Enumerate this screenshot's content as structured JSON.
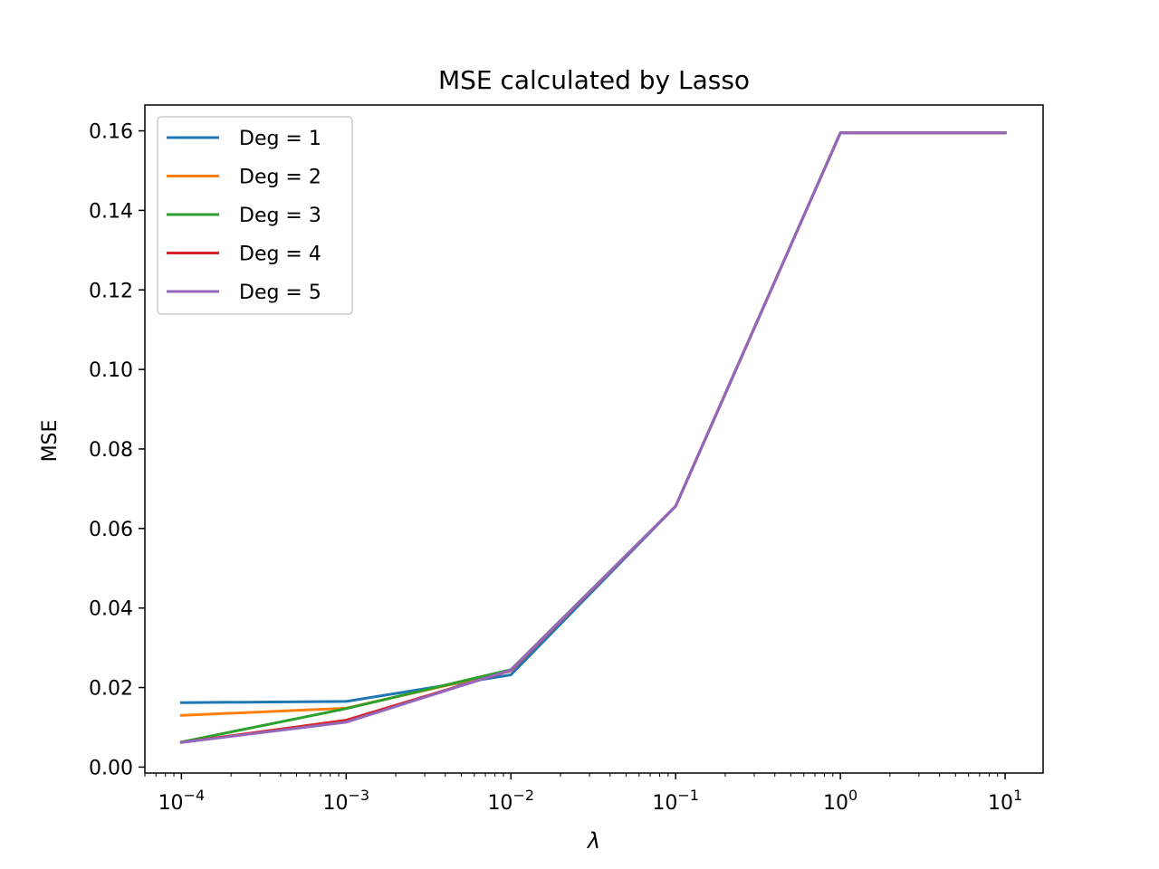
{
  "chart_data": {
    "type": "line",
    "title": "MSE calculated by Lasso",
    "xlabel": "λ",
    "ylabel": "MSE",
    "xscale": "log",
    "xlim": [
      6e-05,
      17
    ],
    "ylim": [
      -0.0015,
      0.1665
    ],
    "grid": false,
    "legend_position": "top-left",
    "x": [
      0.0001,
      0.001,
      0.01,
      0.1,
      1,
      10
    ],
    "x_ticks": [
      {
        "value": 0.0001,
        "base": "10",
        "exp": "−4"
      },
      {
        "value": 0.001,
        "base": "10",
        "exp": "−3"
      },
      {
        "value": 0.01,
        "base": "10",
        "exp": "−2"
      },
      {
        "value": 0.1,
        "base": "10",
        "exp": "−1"
      },
      {
        "value": 1,
        "base": "10",
        "exp": "0"
      },
      {
        "value": 10,
        "base": "10",
        "exp": "1"
      }
    ],
    "y_ticks": [
      {
        "value": 0.0,
        "label": "0.00"
      },
      {
        "value": 0.02,
        "label": "0.02"
      },
      {
        "value": 0.04,
        "label": "0.04"
      },
      {
        "value": 0.06,
        "label": "0.06"
      },
      {
        "value": 0.08,
        "label": "0.08"
      },
      {
        "value": 0.1,
        "label": "0.10"
      },
      {
        "value": 0.12,
        "label": "0.12"
      },
      {
        "value": 0.14,
        "label": "0.14"
      },
      {
        "value": 0.16,
        "label": "0.16"
      }
    ],
    "series": [
      {
        "name": "Deg = 1",
        "color": "#1f77b4",
        "values": [
          0.0162,
          0.0165,
          0.0232,
          0.0656,
          0.1595,
          0.1595
        ]
      },
      {
        "name": "Deg = 2",
        "color": "#ff7f0e",
        "values": [
          0.013,
          0.0148,
          0.0242,
          0.0656,
          0.1595,
          0.1595
        ]
      },
      {
        "name": "Deg = 3",
        "color": "#2ca02c",
        "values": [
          0.0063,
          0.0147,
          0.0245,
          0.0656,
          0.1595,
          0.1595
        ]
      },
      {
        "name": "Deg = 4",
        "color": "#d62728",
        "values": [
          0.0062,
          0.0118,
          0.0243,
          0.0656,
          0.1595,
          0.1595
        ]
      },
      {
        "name": "Deg = 5",
        "color": "#9467bd",
        "values": [
          0.0062,
          0.0113,
          0.0244,
          0.0656,
          0.1595,
          0.1595
        ]
      }
    ]
  }
}
